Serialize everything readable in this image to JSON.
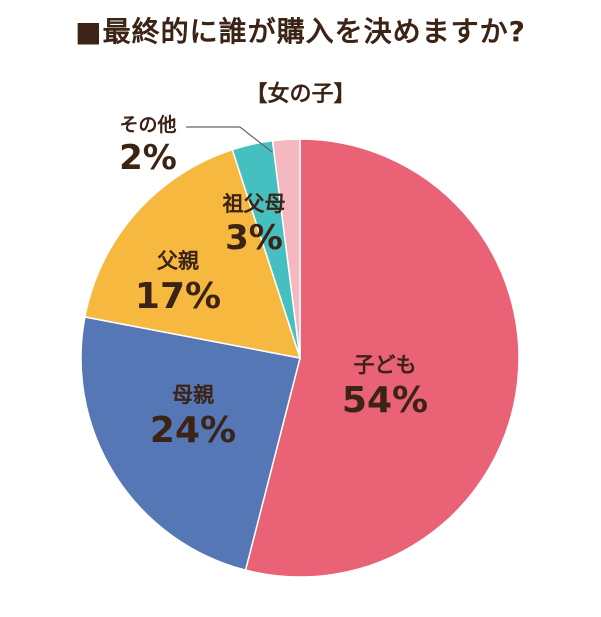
{
  "title": "■最終的に誰が購入を決めますか?",
  "subtitle": "【女の子】",
  "chart_data": {
    "type": "pie",
    "title": "■最終的に誰が購入を決めますか?",
    "subtitle": "【女の子】",
    "slices": [
      {
        "label": "子ども",
        "value": 54,
        "value_label": "54%",
        "color": "#e96275"
      },
      {
        "label": "母親",
        "value": 24,
        "value_label": "24%",
        "color": "#5577b5"
      },
      {
        "label": "父親",
        "value": 17,
        "value_label": "17%",
        "color": "#f7b840"
      },
      {
        "label": "祖父母",
        "value": 3,
        "value_label": "3%",
        "color": "#45bfbf"
      },
      {
        "label": "その他",
        "value": 2,
        "value_label": "2%",
        "color": "#f3b8c0"
      }
    ],
    "label_color": "#3b2316",
    "edge_color": "#ffffff"
  }
}
